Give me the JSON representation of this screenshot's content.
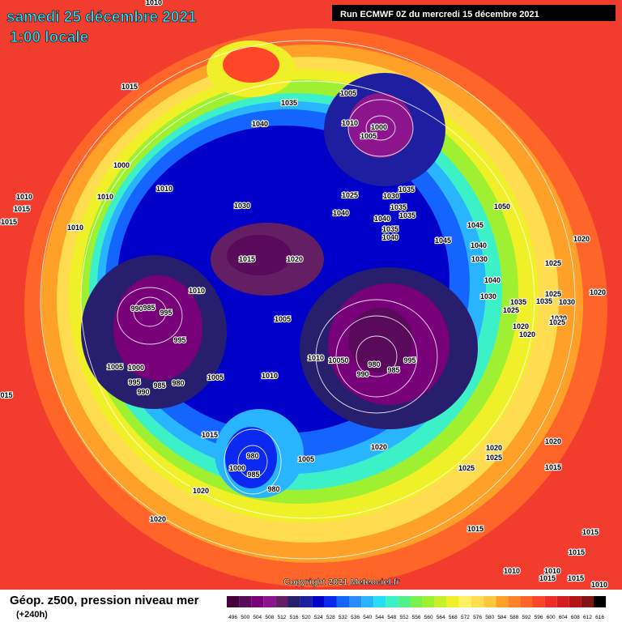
{
  "header": {
    "date": "samedi 25 décembre 2021",
    "time": "1:00 locale",
    "run": "Run ECMWF 0Z du mercredi 15 décembre 2021"
  },
  "footer": {
    "title": "Géop. z500, pression niveau mer",
    "lead": "(+240h)",
    "copyright": "Copyright 2021 Meteociel.fr"
  },
  "colorbar": {
    "levels": [
      496,
      500,
      504,
      508,
      512,
      516,
      520,
      524,
      528,
      532,
      536,
      540,
      544,
      548,
      552,
      556,
      560,
      564,
      568,
      572,
      576,
      580,
      584,
      588,
      592,
      596,
      600,
      604,
      608,
      612,
      616
    ],
    "colors": [
      "#46003c",
      "#5a0a5a",
      "#780078",
      "#8c148c",
      "#641e64",
      "#281e6e",
      "#1e1ea0",
      "#0000c8",
      "#0a28f0",
      "#1464ff",
      "#288cff",
      "#28b4ff",
      "#28dcf5",
      "#3cf0c8",
      "#50f08c",
      "#78f050",
      "#a0f032",
      "#c8f028",
      "#f0f028",
      "#fff064",
      "#ffdc50",
      "#ffc83c",
      "#ffa028",
      "#ff8228",
      "#ff6428",
      "#ff4628",
      "#f02d28",
      "#d21e1e",
      "#b41414",
      "#821414",
      "#000000"
    ]
  },
  "isobar_labels": [
    "1010",
    "1015",
    "1035",
    "1005",
    "1040",
    "1010",
    "1000",
    "1005",
    "1000",
    "1010",
    "1010",
    "1010",
    "1015",
    "1015",
    "1010",
    "1030",
    "1025",
    "1030",
    "1035",
    "1035",
    "1035",
    "1040",
    "1040",
    "1035",
    "1040",
    "1045",
    "1045",
    "1050",
    "1040",
    "1030",
    "1020",
    "1025",
    "1015",
    "1020",
    "1040",
    "1030",
    "1020",
    "1035",
    "1035",
    "1030",
    "1025",
    "1025",
    "1030",
    "1025",
    "1020",
    "1020",
    "1010",
    "985",
    "990",
    "995",
    "1005",
    "995",
    "1010",
    "10050",
    "980",
    "995",
    "985",
    "990",
    "1005",
    "1000",
    "995",
    "985",
    "990",
    "980",
    "1005",
    "1010",
    "015",
    "1015",
    "1020",
    "980",
    "1020",
    "1025",
    "1020",
    "1005",
    "1000",
    "985",
    "980",
    "1025",
    "1015",
    "1020",
    "1020",
    "1015",
    "1015",
    "1015",
    "1010",
    "1015",
    "1015",
    "1010",
    "1010"
  ]
}
